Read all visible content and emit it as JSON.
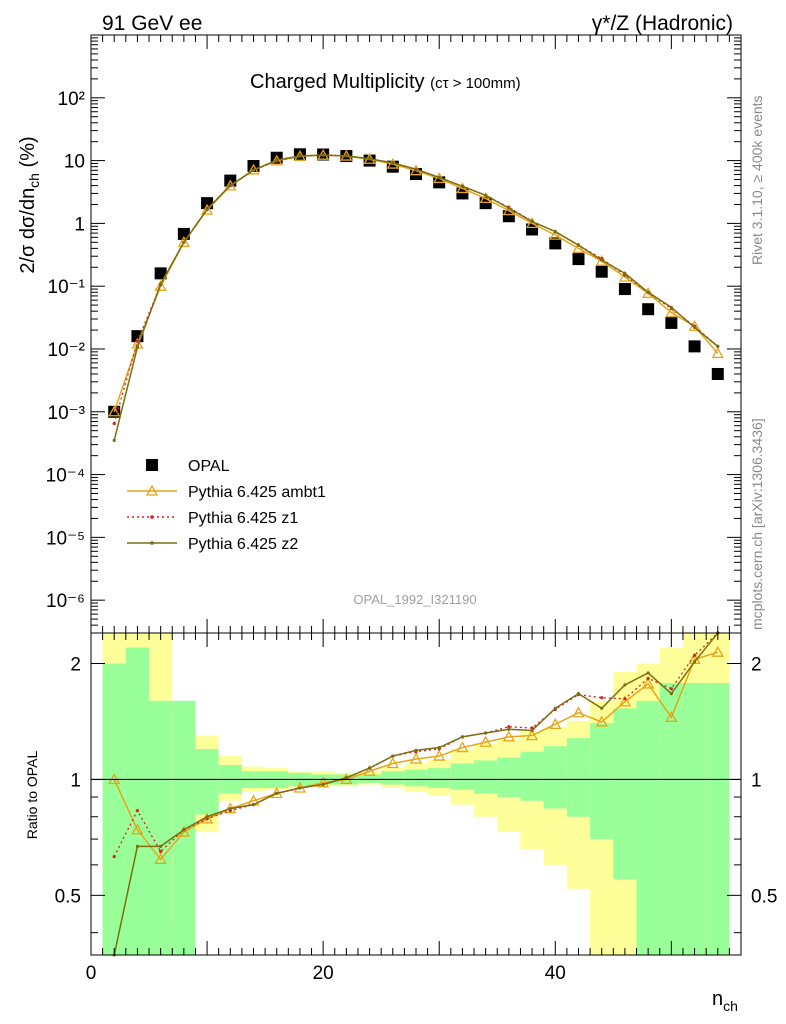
{
  "header": {
    "left": "91 GeV ee",
    "right_main": "γ*/Z (Hadronic)"
  },
  "title": {
    "main": "Charged Multiplicity",
    "sub": "(cτ > 100mm)"
  },
  "side_labels": {
    "right_top": "Rivet 3.1.10, ≥ 400k events",
    "right_bottom": "mcplots.cern.ch [arXiv:1306.3436]"
  },
  "analysis_id": "OPAL_1992_I321190",
  "main_ylabel": "2/σ dσ/dn_ch (%)",
  "ratio_ylabel": "Ratio to OPAL",
  "xlabel": "n_ch",
  "legend": {
    "items": [
      {
        "label": "OPAL",
        "color": "#000000",
        "style": "square"
      },
      {
        "label": "Pythia 6.425 ambt1",
        "color": "#e8a418",
        "style": "triangle"
      },
      {
        "label": "Pythia 6.425 z1",
        "color": "#e01e1e",
        "style": "dotted"
      },
      {
        "label": "Pythia 6.425 z2",
        "color": "#7a6e10",
        "style": "solid"
      }
    ]
  },
  "chart_data": {
    "type": "scatter",
    "x_range": [
      0,
      56
    ],
    "main": {
      "yscale": "log",
      "ylim": [
        3e-07,
        1000
      ],
      "y_tick_labels": [
        "10⁻⁶",
        "10⁻⁵",
        "10⁻⁴",
        "10⁻³",
        "10⁻²",
        "10⁻¹",
        "1",
        "10",
        "10²"
      ],
      "data": {
        "name": "OPAL",
        "x": [
          2,
          4,
          6,
          8,
          10,
          12,
          14,
          16,
          18,
          20,
          22,
          24,
          26,
          28,
          30,
          32,
          34,
          36,
          38,
          40,
          42,
          44,
          46,
          48,
          50,
          52,
          54
        ],
        "y": [
          0.001,
          0.016,
          0.16,
          0.68,
          2.1,
          4.8,
          8.2,
          11.1,
          12.6,
          12.5,
          11.8,
          10.0,
          8.0,
          6.1,
          4.5,
          3.0,
          2.1,
          1.3,
          0.8,
          0.48,
          0.27,
          0.17,
          0.09,
          0.043,
          0.026,
          0.011,
          0.004
        ]
      },
      "series": [
        {
          "name": "Pythia 6.425 ambt1",
          "x": [
            2,
            4,
            6,
            8,
            10,
            12,
            14,
            16,
            18,
            20,
            22,
            24,
            26,
            28,
            30,
            32,
            34,
            36,
            38,
            40,
            42,
            44,
            46,
            48,
            50,
            52,
            54
          ],
          "y": [
            0.001,
            0.012,
            0.1,
            0.5,
            1.63,
            3.96,
            7.1,
            9.9,
            11.7,
            12.2,
            11.8,
            10.5,
            8.8,
            6.9,
            5.2,
            3.6,
            2.5,
            1.6,
            1.0,
            0.65,
            0.4,
            0.25,
            0.14,
            0.077,
            0.038,
            0.023,
            0.0085
          ]
        },
        {
          "name": "Pythia 6.425 z1",
          "x": [
            2,
            4,
            6,
            8,
            10,
            12,
            14,
            16,
            18,
            20,
            22,
            24,
            26,
            28,
            30,
            32,
            34,
            36,
            38,
            40,
            42,
            44,
            46,
            48,
            50,
            52,
            54
          ],
          "y": [
            0.00065,
            0.0133,
            0.105,
            0.5,
            1.66,
            3.97,
            7.0,
            9.9,
            11.8,
            12.2,
            11.9,
            10.7,
            9.2,
            7.2,
            5.4,
            3.9,
            2.8,
            1.79,
            1.09,
            0.73,
            0.45,
            0.275,
            0.15,
            0.079,
            0.044,
            0.023,
            0.011
          ]
        },
        {
          "name": "Pythia 6.425 z2",
          "x": [
            2,
            4,
            6,
            8,
            10,
            12,
            14,
            16,
            18,
            20,
            22,
            24,
            26,
            28,
            30,
            32,
            34,
            36,
            38,
            40,
            42,
            44,
            46,
            48,
            50,
            52,
            54
          ],
          "y": [
            0.00035,
            0.0107,
            0.108,
            0.5,
            1.68,
            4.03,
            7.0,
            10.2,
            11.9,
            12.2,
            11.9,
            10.7,
            9.2,
            7.3,
            5.4,
            3.9,
            2.8,
            1.75,
            1.07,
            0.74,
            0.45,
            0.26,
            0.16,
            0.08,
            0.046,
            0.022,
            0.011
          ]
        }
      ]
    },
    "ratio": {
      "yscale": "log",
      "ylim": [
        0.35,
        2.4
      ],
      "ticks": [
        0.5,
        1,
        2
      ],
      "tick_labels": [
        "0.5",
        "1",
        "2"
      ],
      "x_tick_labels": [
        "0",
        "20",
        "40"
      ],
      "x_ticks": [
        0,
        20,
        40
      ],
      "uncertainty_bands": {
        "x_edges": [
          1,
          3,
          5,
          7,
          9,
          11,
          13,
          15,
          17,
          19,
          21,
          23,
          25,
          27,
          29,
          31,
          33,
          35,
          37,
          39,
          41,
          43,
          45,
          47,
          49,
          51,
          53,
          55
        ],
        "green_low": [
          0.35,
          0.35,
          0.35,
          0.35,
          0.81,
          0.92,
          0.95,
          0.95,
          0.96,
          0.97,
          0.97,
          0.98,
          0.97,
          0.96,
          0.95,
          0.94,
          0.92,
          0.9,
          0.88,
          0.84,
          0.8,
          0.7,
          0.55,
          0.35,
          0.35,
          0.35,
          0.35
        ],
        "green_high": [
          2.0,
          2.2,
          1.6,
          1.6,
          1.2,
          1.09,
          1.05,
          1.05,
          1.04,
          1.03,
          1.03,
          1.03,
          1.05,
          1.06,
          1.07,
          1.1,
          1.12,
          1.14,
          1.18,
          1.22,
          1.28,
          1.4,
          1.53,
          1.6,
          1.78,
          1.78,
          1.78
        ],
        "yellow_low": [
          0.35,
          0.35,
          0.35,
          0.42,
          0.73,
          0.88,
          0.93,
          0.94,
          0.95,
          0.96,
          0.96,
          0.97,
          0.95,
          0.93,
          0.91,
          0.86,
          0.8,
          0.73,
          0.66,
          0.6,
          0.52,
          0.35,
          0.35,
          0.35,
          0.35,
          0.35,
          0.35
        ],
        "yellow_high": [
          2.4,
          2.4,
          2.4,
          1.55,
          1.3,
          1.15,
          1.08,
          1.07,
          1.05,
          1.05,
          1.04,
          1.05,
          1.07,
          1.1,
          1.13,
          1.2,
          1.24,
          1.27,
          1.33,
          1.37,
          1.42,
          1.6,
          1.9,
          2.0,
          2.2,
          2.4,
          2.4
        ]
      },
      "series": [
        {
          "name": "Pythia 6.425 ambt1",
          "x": [
            2,
            4,
            6,
            8,
            10,
            12,
            14,
            16,
            18,
            20,
            22,
            24,
            26,
            28,
            30,
            32,
            34,
            36,
            38,
            40,
            42,
            44,
            46,
            48,
            50,
            52,
            54
          ],
          "y": [
            1.0,
            0.74,
            0.62,
            0.73,
            0.79,
            0.84,
            0.88,
            0.92,
            0.95,
            0.98,
            1.0,
            1.05,
            1.1,
            1.13,
            1.15,
            1.21,
            1.25,
            1.29,
            1.3,
            1.39,
            1.49,
            1.41,
            1.59,
            1.77,
            1.45,
            2.05,
            2.14
          ]
        },
        {
          "name": "Pythia 6.425 z1",
          "x": [
            2,
            4,
            6,
            8,
            10,
            12,
            14,
            16,
            18,
            20,
            22,
            24,
            26,
            28,
            30,
            32,
            34,
            36,
            38,
            40,
            42,
            44,
            46,
            48,
            50,
            52,
            54
          ],
          "y": [
            0.63,
            0.83,
            0.65,
            0.74,
            0.79,
            0.83,
            0.86,
            0.92,
            0.95,
            0.97,
            1.01,
            1.07,
            1.15,
            1.18,
            1.2,
            1.29,
            1.32,
            1.37,
            1.36,
            1.52,
            1.66,
            1.63,
            1.62,
            1.83,
            1.72,
            2.1,
            2.5
          ]
        },
        {
          "name": "Pythia 6.425 z2",
          "x": [
            2,
            4,
            6,
            8,
            10,
            12,
            14,
            16,
            18,
            20,
            22,
            24,
            26,
            28,
            30,
            32,
            34,
            36,
            38,
            40,
            42,
            44,
            46,
            48,
            50,
            52,
            54
          ],
          "y": [
            0.35,
            0.67,
            0.67,
            0.74,
            0.8,
            0.84,
            0.86,
            0.92,
            0.95,
            0.97,
            1.01,
            1.07,
            1.15,
            1.19,
            1.21,
            1.29,
            1.32,
            1.35,
            1.34,
            1.53,
            1.67,
            1.53,
            1.76,
            1.89,
            1.67,
            2.02,
            2.6
          ]
        }
      ]
    }
  }
}
